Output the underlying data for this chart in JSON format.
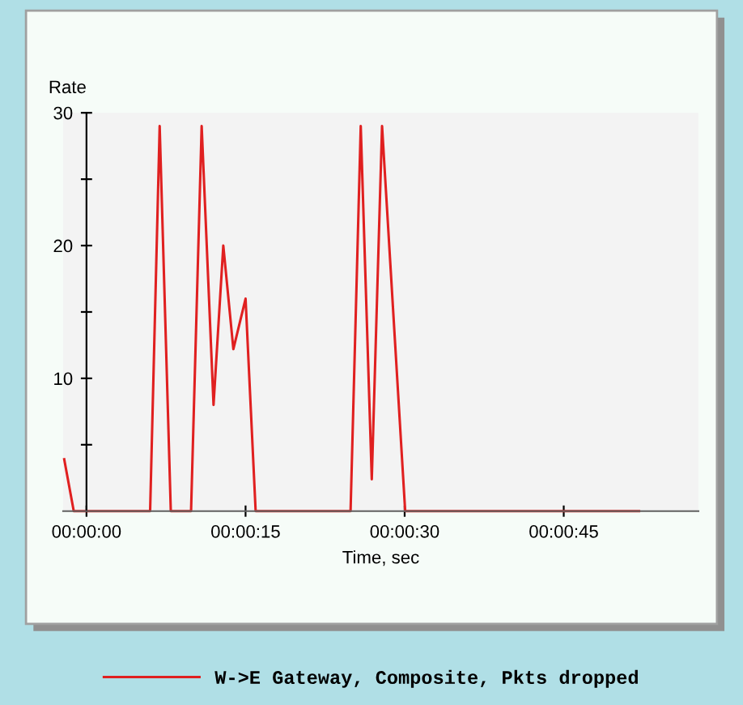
{
  "chart_data": {
    "type": "line",
    "ylabel": "Rate",
    "xlabel": "Time, sec",
    "xlim": [
      -2.2,
      57.7
    ],
    "ylim": [
      0,
      30
    ],
    "xticks": [
      {
        "value": 0,
        "label": "00:00:00"
      },
      {
        "value": 15,
        "label": "00:00:15"
      },
      {
        "value": 30,
        "label": "00:00:30"
      },
      {
        "value": 45,
        "label": "00:00:45"
      }
    ],
    "yticks": [
      {
        "value": 5,
        "label": null
      },
      {
        "value": 10,
        "label": "10"
      },
      {
        "value": 15,
        "label": null
      },
      {
        "value": 20,
        "label": "20"
      },
      {
        "value": 25,
        "label": null
      },
      {
        "value": 30,
        "label": "30"
      }
    ],
    "legend": "bottom",
    "marker": "none",
    "line_style": "solid",
    "series": [
      {
        "name": "W->E Gateway, Composite, Pkts dropped",
        "color": "#e02020",
        "x": [
          -2.1,
          -1.2,
          6.0,
          6.9,
          7.95,
          9.86,
          10.86,
          11.98,
          12.9,
          13.85,
          15.0,
          15.95,
          24.9,
          25.86,
          26.9,
          27.87,
          30.05,
          52.1
        ],
        "values": [
          3.9,
          0,
          0,
          29,
          0,
          0,
          29,
          8,
          20,
          12.2,
          16,
          0,
          0,
          29,
          2.4,
          29,
          0,
          0
        ]
      }
    ]
  }
}
